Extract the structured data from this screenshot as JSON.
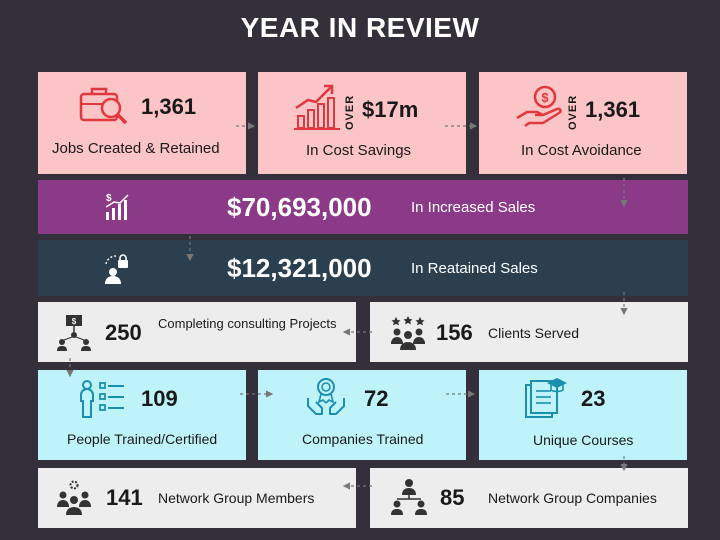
{
  "title": "YEAR IN REVIEW",
  "row1": [
    {
      "value": "1,361",
      "label": "Jobs Created & Retained",
      "icon": "briefcase-magnifier-icon"
    },
    {
      "prefix": "OVER",
      "value": "$17m",
      "label": "In Cost Savings",
      "icon": "growth-chart-icon"
    },
    {
      "prefix": "OVER",
      "value": "1,361",
      "label": "In Cost Avoidance",
      "icon": "hand-coin-icon"
    }
  ],
  "sales": {
    "value": "$70,693,000",
    "label": "In Increased Sales",
    "icon": "dollar-bar-chart-icon"
  },
  "retained": {
    "value": "$12,321,000",
    "label": "In Reatained Sales",
    "icon": "lock-person-icon"
  },
  "row4": [
    {
      "value": "250",
      "label": "Completing consulting Projects",
      "icon": "consulting-network-icon"
    },
    {
      "value": "156",
      "label": "Clients Served",
      "icon": "clients-group-icon"
    }
  ],
  "row5": [
    {
      "value": "109",
      "label": "People Trained/Certified",
      "icon": "trainee-checklist-icon"
    },
    {
      "value": "72",
      "label": "Companies Trained",
      "icon": "award-hands-icon"
    },
    {
      "value": "23",
      "label": "Unique Courses",
      "icon": "books-graduation-icon"
    }
  ],
  "row6": [
    {
      "value": "141",
      "label": "Network Group Members",
      "icon": "network-members-icon"
    },
    {
      "value": "85",
      "label": "Network Group Companies",
      "icon": "network-companies-icon"
    }
  ],
  "colors": {
    "background": "#33303b",
    "pink": "#fbc4c6",
    "purple": "#8a3a86",
    "navy": "#2b3f4f",
    "grey": "#ededed",
    "cyan": "#bff3fa",
    "icon_red": "#e0383e",
    "icon_teal": "#1b8fb0"
  }
}
